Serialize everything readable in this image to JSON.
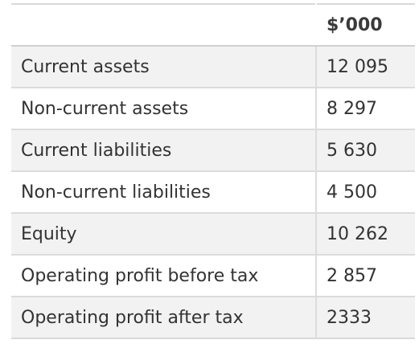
{
  "table": {
    "header": {
      "label": "",
      "value": "$’000"
    },
    "rows": [
      {
        "label": "Current assets",
        "value": "12 095"
      },
      {
        "label": "Non-current assets",
        "value": "8 297"
      },
      {
        "label": "Current liabilities",
        "value": "5 630"
      },
      {
        "label": "Non-current liabilities",
        "value": "4 500"
      },
      {
        "label": "Equity",
        "value": "10 262"
      },
      {
        "label": "Operating profit before tax",
        "value": "2 857"
      },
      {
        "label": "Operating profit after tax",
        "value": "2333"
      }
    ]
  }
}
